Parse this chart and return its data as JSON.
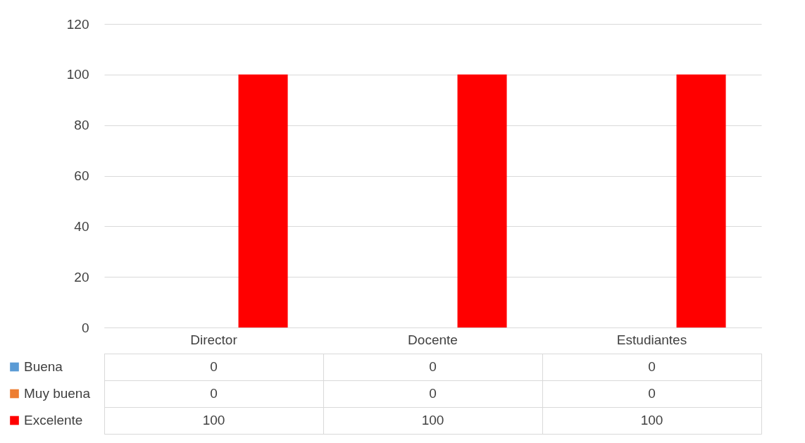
{
  "chart_data": {
    "type": "bar",
    "categories": [
      "Director",
      "Docente",
      "Estudiantes"
    ],
    "series": [
      {
        "name": "Buena",
        "color": "#5b9bd5",
        "values": [
          0,
          0,
          0
        ]
      },
      {
        "name": "Muy buena",
        "color": "#ed7d31",
        "values": [
          0,
          0,
          0
        ]
      },
      {
        "name": "Excelente",
        "color": "#ff0000",
        "values": [
          100,
          100,
          100
        ]
      }
    ],
    "ylim": [
      0,
      120
    ],
    "yticks": [
      0,
      20,
      40,
      60,
      80,
      100,
      120
    ],
    "grid": "y",
    "legend": "bottom",
    "data_labels": true
  }
}
